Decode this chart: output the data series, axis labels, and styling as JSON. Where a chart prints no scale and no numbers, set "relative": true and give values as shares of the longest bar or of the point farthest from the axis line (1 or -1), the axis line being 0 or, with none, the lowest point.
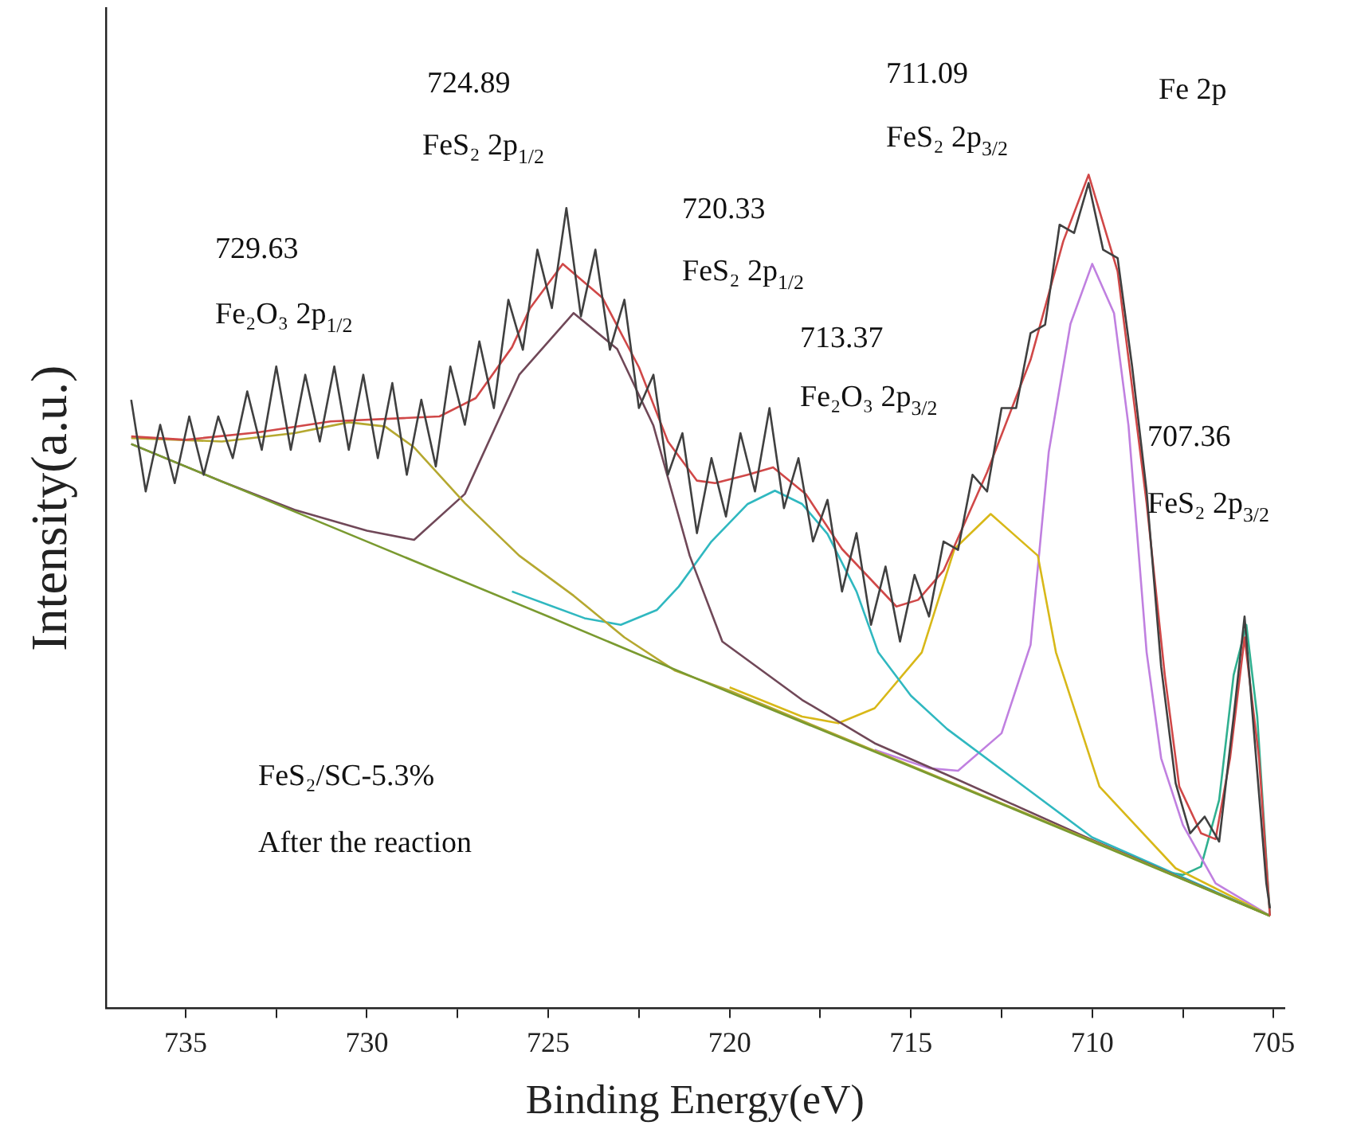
{
  "chart_data": {
    "type": "line",
    "xlabel": "Binding Energy(eV)",
    "ylabel": "Intensity(a.u.)",
    "relative": true,
    "legend": false,
    "grid": false,
    "marker": "none",
    "line_style": "solid",
    "xlim": [
      737.2,
      704.7
    ],
    "xticks": [
      735,
      {
        "value": 732.5,
        "label": null
      },
      730,
      {
        "value": 727.5,
        "label": null
      },
      725,
      {
        "value": 722.5,
        "label": null
      },
      720,
      {
        "value": 717.5,
        "label": null
      },
      715,
      {
        "value": 712.5,
        "label": null
      },
      710,
      {
        "value": 707.5,
        "label": null
      },
      705
    ],
    "annotations": [
      "729.63",
      "Fe₂O₃ 2p$_{1/2}$",
      "724.89",
      "FeS₂ 2p$_{1/2}$",
      "720.33",
      "FeS₂ 2p$_{1/2}$",
      "713.37",
      "Fe₂O₃ 2p$_{3/2}$",
      "711.09",
      "FeS₂ 2p$_{3/2}$",
      "707.36",
      "FeS₂ 2p$_{3/2}$",
      "Fe 2p",
      "FeS₂/SC-5.3%",
      "After the reaction"
    ],
    "series": [
      {
        "color": "#404040",
        "x": [
          736.5,
          736.1,
          735.7,
          735.3,
          734.9,
          734.5,
          734.1,
          733.7,
          733.3,
          732.9,
          732.5,
          732.1,
          731.7,
          731.3,
          730.9,
          730.5,
          730.1,
          729.7,
          729.3,
          728.9,
          728.5,
          728.1,
          727.7,
          727.3,
          726.9,
          726.5,
          726.1,
          725.7,
          725.3,
          724.9,
          724.5,
          724.1,
          723.7,
          723.3,
          722.9,
          722.5,
          722.1,
          721.7,
          721.3,
          720.9,
          720.5,
          720.1,
          719.7,
          719.3,
          718.9,
          718.5,
          718.1,
          717.7,
          717.3,
          716.9,
          716.5,
          716.1,
          715.7,
          715.3,
          714.9,
          714.5,
          714.1,
          713.7,
          713.3,
          712.9,
          712.5,
          712.1,
          711.7,
          711.3,
          710.9,
          710.5,
          710.1,
          709.7,
          709.3,
          708.9,
          708.5,
          708.1,
          707.7,
          707.3,
          706.9,
          706.5,
          706.1,
          705.8,
          705.5,
          705.2,
          705.1
        ],
        "values": [
          0.73,
          0.62,
          0.7,
          0.63,
          0.71,
          0.64,
          0.71,
          0.66,
          0.74,
          0.67,
          0.77,
          0.67,
          0.76,
          0.68,
          0.77,
          0.67,
          0.76,
          0.66,
          0.75,
          0.64,
          0.73,
          0.65,
          0.77,
          0.7,
          0.8,
          0.72,
          0.85,
          0.79,
          0.91,
          0.84,
          0.96,
          0.83,
          0.91,
          0.79,
          0.85,
          0.72,
          0.76,
          0.64,
          0.69,
          0.57,
          0.66,
          0.59,
          0.69,
          0.62,
          0.72,
          0.6,
          0.66,
          0.56,
          0.61,
          0.5,
          0.57,
          0.46,
          0.53,
          0.44,
          0.52,
          0.47,
          0.56,
          0.55,
          0.64,
          0.62,
          0.72,
          0.72,
          0.81,
          0.82,
          0.94,
          0.93,
          0.99,
          0.91,
          0.9,
          0.77,
          0.62,
          0.41,
          0.27,
          0.21,
          0.23,
          0.2,
          0.35,
          0.47,
          0.31,
          0.15,
          0.12
        ]
      },
      {
        "color": "#d04848",
        "x": [
          736.5,
          735,
          733,
          731,
          729,
          728,
          727,
          726,
          725.5,
          724.6,
          723.5,
          722.5,
          721.7,
          720.9,
          720.4,
          719.5,
          718.8,
          717.9,
          716.9,
          715.4,
          714.8,
          714.1,
          712.9,
          711.7,
          710.8,
          710.1,
          709.3,
          708.5,
          708,
          707.6,
          707,
          706.6,
          706.2,
          705.8,
          705.4,
          705.1
        ],
        "values": [
          0.686,
          0.682,
          0.691,
          0.704,
          0.708,
          0.71,
          0.732,
          0.793,
          0.84,
          0.893,
          0.852,
          0.769,
          0.68,
          0.633,
          0.63,
          0.64,
          0.649,
          0.617,
          0.551,
          0.482,
          0.49,
          0.525,
          0.643,
          0.778,
          0.92,
          1.0,
          0.884,
          0.606,
          0.4,
          0.266,
          0.21,
          0.203,
          0.3,
          0.445,
          0.3,
          0.111
        ]
      },
      {
        "color": "#7a9a30",
        "x": [
          736.5,
          730,
          725,
          720,
          715,
          710,
          705.1
        ],
        "values": [
          0.677,
          0.56,
          0.47,
          0.379,
          0.29,
          0.2,
          0.111
        ]
      },
      {
        "color": "#b5a830",
        "x": [
          736.5,
          734,
          732,
          730.5,
          729.5,
          728.7,
          727.3,
          725.8,
          724.3,
          722.9,
          721.5,
          720,
          715,
          710,
          705.1
        ],
        "values": [
          0.684,
          0.68,
          0.69,
          0.703,
          0.698,
          0.673,
          0.606,
          0.543,
          0.495,
          0.445,
          0.405,
          0.381,
          0.291,
          0.201,
          0.111
        ]
      },
      {
        "color": "#704858",
        "x": [
          736.5,
          734,
          732,
          730,
          728.7,
          727.3,
          725.8,
          724.3,
          723.1,
          722.1,
          721.1,
          720.2,
          718,
          716,
          714,
          710,
          705.1
        ],
        "values": [
          0.677,
          0.632,
          0.598,
          0.573,
          0.562,
          0.617,
          0.76,
          0.834,
          0.791,
          0.699,
          0.543,
          0.44,
          0.37,
          0.318,
          0.28,
          0.202,
          0.111
        ]
      },
      {
        "color": "#30b8c0",
        "x": [
          726,
          724,
          723,
          722,
          721.4,
          720.5,
          719.5,
          718.75,
          718,
          717.3,
          716.5,
          715.9,
          715,
          714,
          712,
          710,
          705.1
        ],
        "values": [
          0.5,
          0.468,
          0.46,
          0.478,
          0.506,
          0.56,
          0.605,
          0.621,
          0.605,
          0.569,
          0.5,
          0.427,
          0.375,
          0.335,
          0.27,
          0.205,
          0.111
        ]
      },
      {
        "color": "#d8b818",
        "x": [
          720,
          718,
          717,
          716,
          714.7,
          713.8,
          712.8,
          711.5,
          711,
          709.8,
          707.7,
          705.6,
          705.1
        ],
        "values": [
          0.385,
          0.35,
          0.342,
          0.36,
          0.427,
          0.551,
          0.593,
          0.543,
          0.427,
          0.266,
          0.168,
          0.122,
          0.111
        ]
      },
      {
        "color": "#c080e0",
        "x": [
          716,
          714.5,
          713.7,
          712.5,
          711.7,
          711.2,
          710.6,
          710,
          709.4,
          709,
          708.5,
          708.1,
          707.5,
          706.6,
          705.1
        ],
        "values": [
          0.31,
          0.288,
          0.285,
          0.33,
          0.436,
          0.667,
          0.821,
          0.893,
          0.834,
          0.699,
          0.427,
          0.3,
          0.22,
          0.15,
          0.111
        ]
      },
      {
        "color": "#30b090",
        "x": [
          708,
          707.5,
          707,
          706.5,
          706.1,
          705.75,
          705.45,
          705.1
        ],
        "values": [
          0.164,
          0.16,
          0.17,
          0.25,
          0.4,
          0.46,
          0.35,
          0.111
        ]
      }
    ]
  }
}
